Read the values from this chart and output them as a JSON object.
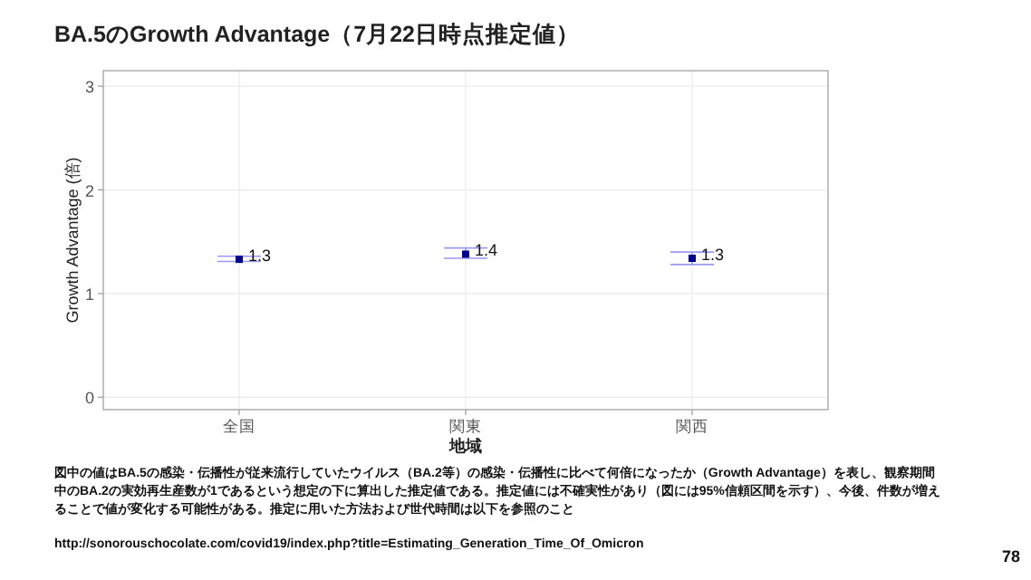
{
  "chart_data": {
    "type": "scatter",
    "title": "BA.5のGrowth Advantage（7月22日時点推定値）",
    "xlabel": "地域",
    "ylabel": "Growth Advantage (倍)",
    "categories": [
      "全国",
      "関東",
      "関西"
    ],
    "series": [
      {
        "color": "#00008b",
        "values": [
          1.33,
          1.38,
          1.34
        ],
        "errors": [
          [
            1.31,
            1.36
          ],
          [
            1.34,
            1.44
          ],
          [
            1.28,
            1.4
          ]
        ],
        "value_labels": [
          "1.3",
          "1.4",
          "1.3"
        ]
      }
    ],
    "ylim": [
      -0.12,
      3.15
    ],
    "yticks": [
      0,
      1,
      2,
      3
    ],
    "grid": true,
    "marker": "square",
    "annotations": [
      "図中の値はBA.5の感染・伝播性が従来流行していたウイルス（BA.2等）の感染・伝播性に比べて何倍になったか（Growth Advantage）を表し、観察期間中のBA.2の実効再生産数が1であるという想定の下に算出した推定値である。推定値には不確実性があり（図には95%信頼区間を示す）、今後、件数が増えることで値が変化する可能性がある。推定に用いた方法および世代時間は以下を参照のこと",
      "http://sonorouschocolate.com/covid19/index.php?title=Estimating_Generation_Time_Of_Omicron",
      "78"
    ]
  }
}
